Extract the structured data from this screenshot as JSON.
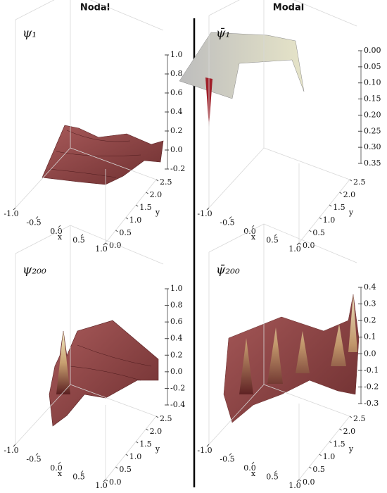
{
  "headers": [
    "Nodal",
    "Modal"
  ],
  "chart_data": [
    {
      "type": "surface",
      "title": "ψ₁",
      "xlabel": "x",
      "ylabel": "y",
      "xlim": [
        -1,
        1
      ],
      "xticks": [
        {
          "value": -1,
          "label": "-1.0"
        },
        -0.5,
        {
          "value": 0,
          "label": "0.0"
        },
        0.5,
        {
          "value": 1,
          "label": "1.0"
        }
      ],
      "ylim": [
        0,
        2.5
      ],
      "yticks": [
        {
          "value": 0,
          "label": "0.0"
        },
        0.5,
        {
          "value": 1,
          "label": "1.0"
        },
        1.5,
        {
          "value": 2,
          "label": "2.0"
        },
        2.5
      ],
      "zlim": [
        -0.2,
        1
      ],
      "zticks": [
        -0.2,
        {
          "value": 0,
          "label": "0.0"
        },
        0.2,
        0.4,
        0.6,
        0.8,
        {
          "value": 1,
          "label": "1.0"
        }
      ]
    },
    {
      "type": "surface",
      "title": "ψ̄₁",
      "xlabel": "x",
      "ylabel": "y",
      "xlim": [
        -1,
        1
      ],
      "xticks": [
        {
          "value": -1,
          "label": "-1.0"
        },
        -0.5,
        {
          "value": 0,
          "label": "0.0"
        },
        0.5,
        {
          "value": 1,
          "label": "1.0"
        }
      ],
      "ylim": [
        0,
        2.5
      ],
      "yticks": [
        {
          "value": 0,
          "label": "0.0"
        },
        0.5,
        {
          "value": 1,
          "label": "1.0"
        },
        1.5,
        {
          "value": 2,
          "label": "2.0"
        },
        2.5
      ],
      "zlim": [
        0.35,
        0
      ],
      "zticks": [
        {
          "value": 0,
          "label": "0.00"
        },
        0.05,
        {
          "value": 0.1,
          "label": "0.10"
        },
        0.15,
        {
          "value": 0.2,
          "label": "0.20"
        },
        0.25,
        {
          "value": 0.3,
          "label": "0.30"
        },
        0.35
      ]
    },
    {
      "type": "surface",
      "title": "ψ₂₀₀",
      "xlabel": "x",
      "ylabel": "y",
      "xlim": [
        -1,
        1
      ],
      "xticks": [
        {
          "value": -1,
          "label": "-1.0"
        },
        -0.5,
        {
          "value": 0,
          "label": "0.0"
        },
        0.5,
        {
          "value": 1,
          "label": "1.0"
        }
      ],
      "ylim": [
        0,
        2.5
      ],
      "yticks": [
        {
          "value": 0,
          "label": "0.0"
        },
        0.5,
        {
          "value": 1,
          "label": "1.0"
        },
        1.5,
        {
          "value": 2,
          "label": "2.0"
        },
        2.5
      ],
      "zlim": [
        -0.4,
        1
      ],
      "zticks": [
        -0.4,
        -0.2,
        {
          "value": 0,
          "label": "0.0"
        },
        0.2,
        0.4,
        0.6,
        0.8,
        {
          "value": 1,
          "label": "1.0"
        }
      ]
    },
    {
      "type": "surface",
      "title": "ψ̄₂₀₀",
      "xlabel": "x",
      "ylabel": "y",
      "xlim": [
        -1,
        1
      ],
      "xticks": [
        {
          "value": -1,
          "label": "-1.0"
        },
        -0.5,
        {
          "value": 0,
          "label": "0.0"
        },
        0.5,
        {
          "value": 1,
          "label": "1.0"
        }
      ],
      "ylim": [
        0,
        2.5
      ],
      "yticks": [
        {
          "value": 0,
          "label": "0.0"
        },
        0.5,
        {
          "value": 1,
          "label": "1.0"
        },
        1.5,
        {
          "value": 2,
          "label": "2.0"
        },
        2.5
      ],
      "zlim": [
        -0.3,
        0.4
      ],
      "zticks": [
        -0.3,
        -0.2,
        -0.1,
        {
          "value": 0,
          "label": "0.0"
        },
        0.1,
        0.2,
        0.3,
        0.4
      ]
    }
  ]
}
